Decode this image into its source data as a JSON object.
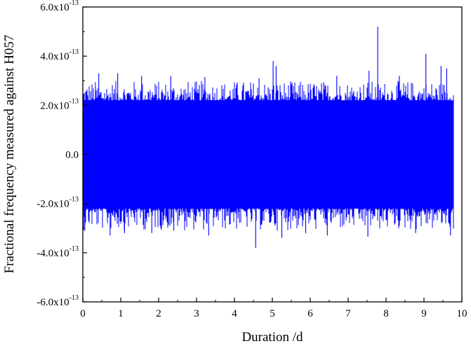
{
  "chart_data": {
    "type": "line",
    "title": "",
    "xlabel": "Duration /d",
    "ylabel": "Fractional frequency measured against H057",
    "xlim": [
      0,
      10
    ],
    "ylim": [
      -6e-13,
      6e-13
    ],
    "x_ticks": [
      0,
      1,
      2,
      3,
      4,
      5,
      6,
      7,
      8,
      9,
      10
    ],
    "x_tick_labels": [
      "0",
      "1",
      "2",
      "3",
      "4",
      "5",
      "6",
      "7",
      "8",
      "9",
      "10"
    ],
    "y_ticks": [
      {
        "value": 6e-13,
        "mantissa": "6.0x10",
        "exponent": "-13"
      },
      {
        "value": 4e-13,
        "mantissa": "4.0x10",
        "exponent": "-13"
      },
      {
        "value": 2e-13,
        "mantissa": "2.0x10",
        "exponent": "-13"
      },
      {
        "value": 0,
        "mantissa": "0.0",
        "exponent": ""
      },
      {
        "value": -2e-13,
        "mantissa": "-2.0x10",
        "exponent": "-13"
      },
      {
        "value": -4e-13,
        "mantissa": "-4.0x10",
        "exponent": "-13"
      },
      {
        "value": -6e-13,
        "mantissa": "-6.0x10",
        "exponent": "-13"
      }
    ],
    "grid": false,
    "legend": "none",
    "series": [
      {
        "color": "#0000ff",
        "x_range": [
          0,
          9.78
        ],
        "band_upper": 2.2e-13,
        "band_lower": -2.2e-13,
        "envelope_upper": 3e-13,
        "envelope_lower": -3.1e-13,
        "peaks": [
          {
            "x": 0.42,
            "y": 3.3e-13
          },
          {
            "x": 0.92,
            "y": 3.3e-13
          },
          {
            "x": 1.55,
            "y": 3.2e-13
          },
          {
            "x": 2.32,
            "y": 3.2e-13
          },
          {
            "x": 3.22,
            "y": 3.15e-13
          },
          {
            "x": 4.65,
            "y": 3.1e-13
          },
          {
            "x": 5.02,
            "y": 3.8e-13
          },
          {
            "x": 5.1,
            "y": 3.6e-13
          },
          {
            "x": 6.7,
            "y": 3.2e-13
          },
          {
            "x": 7.55,
            "y": 3.4e-13
          },
          {
            "x": 7.78,
            "y": 5.2e-13
          },
          {
            "x": 8.35,
            "y": 3.2e-13
          },
          {
            "x": 9.05,
            "y": 4.1e-13
          },
          {
            "x": 9.45,
            "y": 3.6e-13
          },
          {
            "x": 9.6,
            "y": 3.5e-13
          }
        ],
        "troughs": [
          {
            "x": 0.05,
            "y": -3.1e-13
          },
          {
            "x": 0.72,
            "y": -3.3e-13
          },
          {
            "x": 1.1,
            "y": -3.2e-13
          },
          {
            "x": 1.82,
            "y": -3.2e-13
          },
          {
            "x": 2.4,
            "y": -3.1e-13
          },
          {
            "x": 3.32,
            "y": -3.3e-13
          },
          {
            "x": 4.56,
            "y": -3.8e-13
          },
          {
            "x": 5.25,
            "y": -3.4e-13
          },
          {
            "x": 5.88,
            "y": -3.2e-13
          },
          {
            "x": 6.45,
            "y": -3.3e-13
          },
          {
            "x": 7.52,
            "y": -3.35e-13
          },
          {
            "x": 8.78,
            "y": -3.2e-13
          },
          {
            "x": 9.7,
            "y": -3.3e-13
          }
        ]
      }
    ]
  }
}
